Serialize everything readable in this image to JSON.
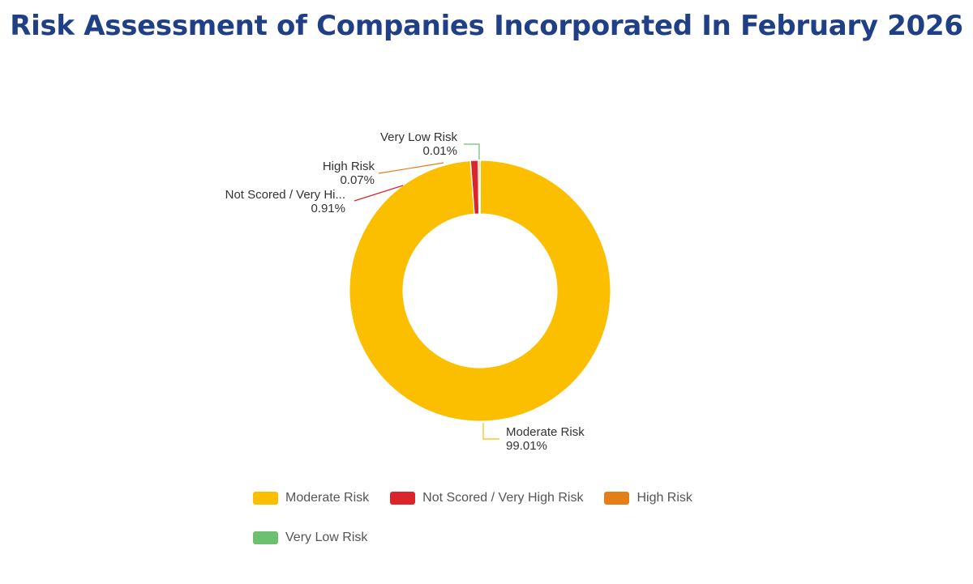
{
  "page": {
    "title": "Risk Assessment of Companies Incorporated In February 2026"
  },
  "chart_data": {
    "type": "pie",
    "variant": "donut",
    "title": "Risk Assessment of Companies Incorporated In February 2026",
    "slices": [
      {
        "name": "Moderate Risk",
        "label": "Moderate Risk",
        "value": 99.01,
        "value_label": "99.01%",
        "color": "#fbbf00"
      },
      {
        "name": "Not Scored / Very High Risk",
        "label": "Not Scored / Very Hi...",
        "value": 0.91,
        "value_label": "0.91%",
        "color": "#d9252b"
      },
      {
        "name": "High Risk",
        "label": "High Risk",
        "value": 0.07,
        "value_label": "0.07%",
        "color": "#e67e17"
      },
      {
        "name": "Very Low Risk",
        "label": "Very Low Risk",
        "value": 0.01,
        "value_label": "0.01%",
        "color": "#6cc070"
      }
    ],
    "legend": {
      "position": "bottom",
      "rows": [
        [
          "Moderate Risk",
          "Not Scored / Very High Risk",
          "High Risk"
        ],
        [
          "Very Low Risk"
        ]
      ]
    }
  }
}
